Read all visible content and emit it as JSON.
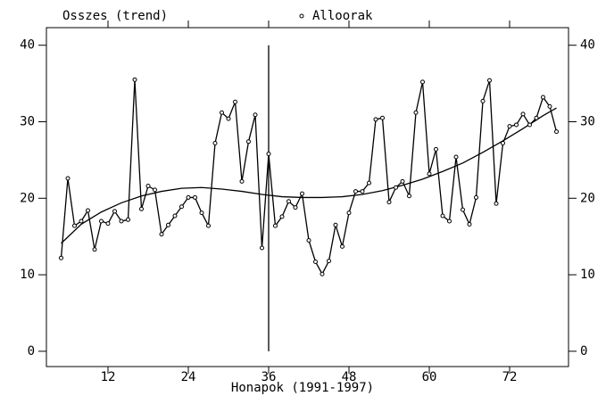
{
  "chart_data": {
    "type": "line",
    "x_label": "Honapok (1991-1997)",
    "xlim": [
      2.8,
      80.8
    ],
    "xticks": [
      12,
      24,
      36,
      48,
      60,
      72
    ],
    "ylim": [
      -2,
      42.3
    ],
    "yticks": [
      0,
      10,
      20,
      30,
      40
    ],
    "xline": 36,
    "series": [
      {
        "name": "Osszes (trend)",
        "color": "#000000",
        "marker": false,
        "x": [
          5,
          8,
          11,
          14,
          17,
          20,
          23,
          26,
          29,
          32,
          35,
          38,
          41,
          44,
          47,
          50,
          53,
          56,
          59,
          62,
          65,
          68,
          71,
          74,
          77,
          79
        ],
        "values": [
          14.1,
          16.6,
          18.2,
          19.4,
          20.3,
          20.9,
          21.3,
          21.4,
          21.2,
          20.9,
          20.5,
          20.2,
          20.1,
          20.1,
          20.2,
          20.5,
          21.0,
          21.7,
          22.5,
          23.5,
          24.6,
          26.0,
          27.5,
          29.1,
          30.8,
          31.8
        ]
      },
      {
        "name": "Alloorak",
        "color": "#000000",
        "marker": true,
        "x": [
          5,
          6,
          7,
          8,
          9,
          10,
          11,
          12,
          13,
          14,
          15,
          16,
          17,
          18,
          19,
          20,
          21,
          22,
          23,
          24,
          25,
          26,
          27,
          28,
          29,
          30,
          31,
          32,
          33,
          34,
          35,
          36,
          37,
          38,
          39,
          40,
          41,
          42,
          43,
          44,
          45,
          46,
          47,
          48,
          49,
          50,
          51,
          52,
          53,
          54,
          55,
          56,
          57,
          58,
          59,
          60,
          61,
          62,
          63,
          64,
          65,
          66,
          67,
          68,
          69,
          70,
          71,
          72,
          73,
          74,
          75,
          76,
          77,
          78,
          79
        ],
        "values": [
          12.2,
          22.6,
          16.4,
          17.0,
          18.4,
          13.3,
          17.0,
          16.7,
          18.3,
          17.0,
          17.2,
          35.5,
          18.6,
          21.6,
          21.1,
          15.3,
          16.5,
          17.7,
          18.9,
          20.1,
          20.1,
          18.1,
          16.4,
          27.2,
          31.2,
          30.4,
          32.6,
          22.2,
          27.4,
          30.9,
          13.5,
          25.8,
          16.4,
          17.6,
          19.6,
          18.8,
          20.6,
          14.5,
          11.7,
          10.1,
          11.8,
          16.5,
          13.7,
          18.1,
          20.9,
          20.9,
          22.0,
          30.3,
          30.5,
          19.5,
          21.4,
          22.2,
          20.3,
          31.2,
          35.2,
          23.2,
          26.4,
          17.7,
          17.0,
          25.4,
          18.5,
          16.6,
          20.1,
          32.7,
          35.4,
          19.3,
          27.2,
          29.4,
          29.6,
          31.0,
          29.6,
          30.5,
          33.2,
          32.0,
          28.7
        ]
      }
    ]
  }
}
